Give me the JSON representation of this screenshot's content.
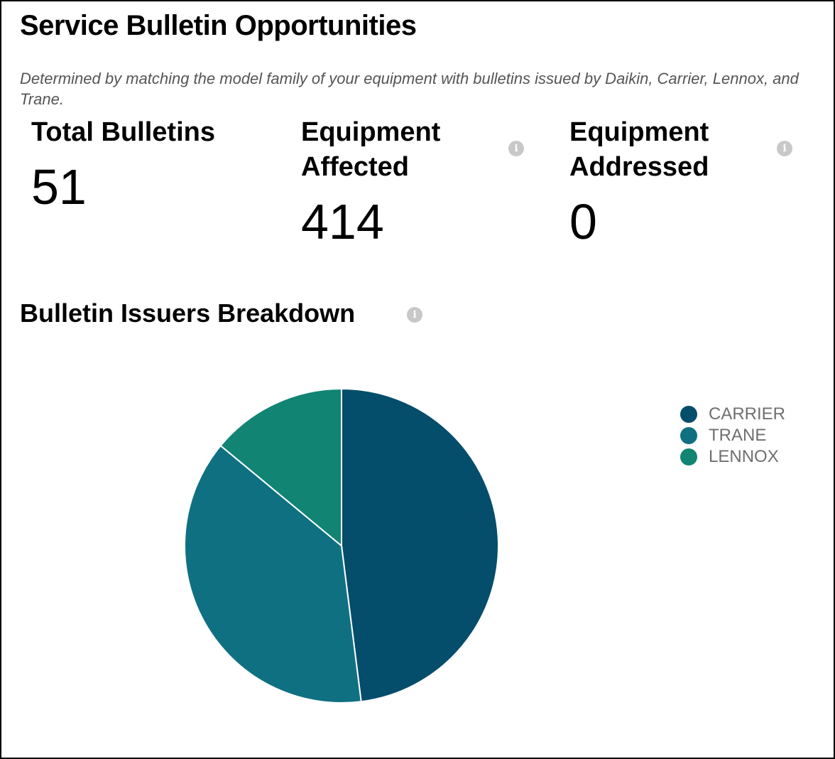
{
  "header": {
    "title": "Service Bulletin Opportunities",
    "description": "Determined by matching the model family of your equipment with bulletins issued by Daikin, Carrier, Lennox, and Trane."
  },
  "metrics": [
    {
      "label": "Total Bulletins",
      "value": "51",
      "has_info": false
    },
    {
      "label": "Equipment Affected",
      "value": "414",
      "has_info": true
    },
    {
      "label": "Equipment Addressed",
      "value": "0",
      "has_info": true
    }
  ],
  "info_glyph": "i",
  "breakdown": {
    "title": "Bulletin Issuers Breakdown"
  },
  "chart_data": {
    "type": "pie",
    "title": "Bulletin Issuers Breakdown",
    "categories": [
      "CARRIER",
      "TRANE",
      "LENNOX"
    ],
    "values": [
      48,
      38,
      14
    ],
    "unit": "percent (estimated)",
    "colors": [
      "#044d6b",
      "#0f7082",
      "#118473"
    ],
    "legend": "right"
  }
}
